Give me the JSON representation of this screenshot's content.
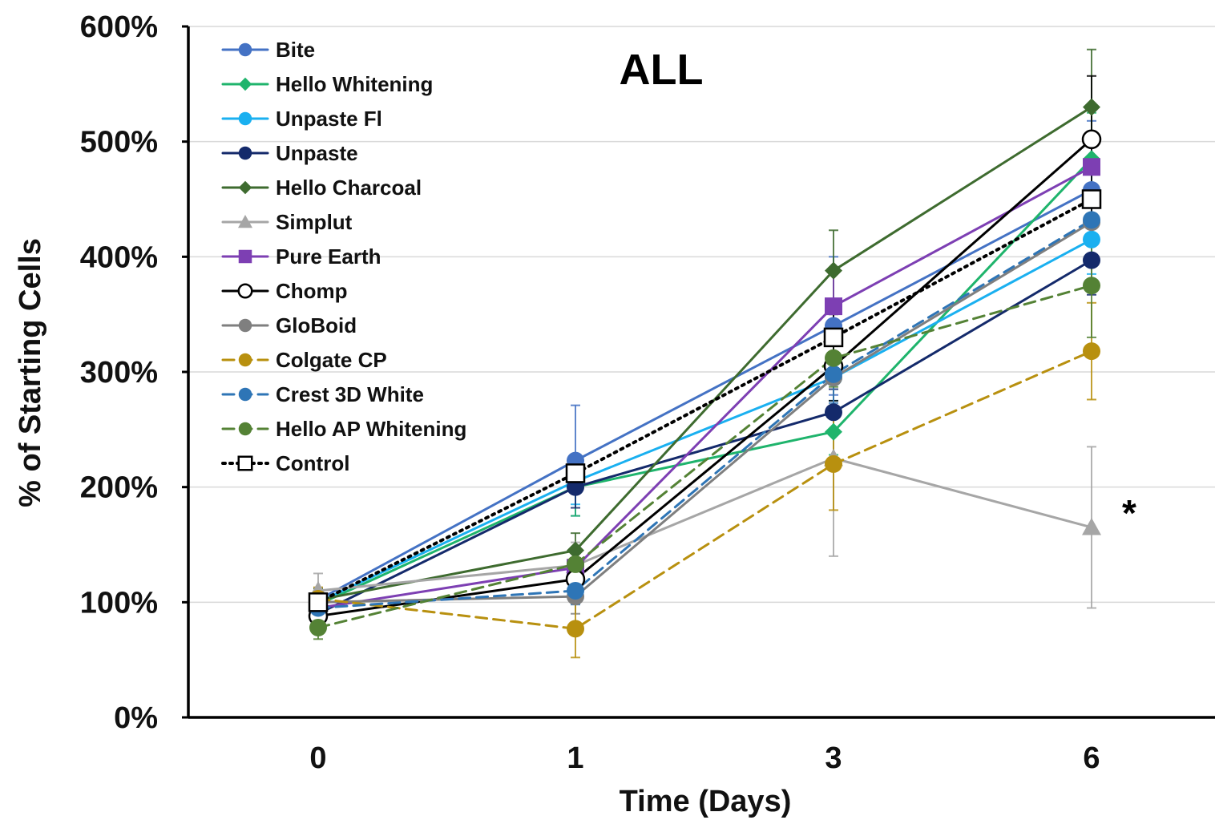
{
  "chart_data": {
    "type": "line",
    "title": "ALL",
    "xlabel": "Time (Days)",
    "ylabel": "% of Starting Cells",
    "categories": [
      "0",
      "1",
      "3",
      "6"
    ],
    "ylim": [
      0,
      600
    ],
    "y_ticks": [
      "0%",
      "100%",
      "200%",
      "300%",
      "400%",
      "500%",
      "600%"
    ],
    "grid": "horizontal",
    "legend_position": "top-left",
    "annotations": [
      {
        "text": "*",
        "near_series": "Simplut",
        "x": "6"
      }
    ],
    "series": [
      {
        "name": "Bite",
        "color": "#4472c4",
        "marker": "circle",
        "dash": "solid",
        "values": [
          102,
          223,
          340,
          458
        ],
        "errors": [
          10,
          48,
          60,
          60
        ]
      },
      {
        "name": "Hello Whitening",
        "color": "#1fb46c",
        "marker": "diamond",
        "dash": "solid",
        "values": [
          98,
          200,
          248,
          485
        ],
        "errors": [
          10,
          25,
          20,
          40
        ]
      },
      {
        "name": "Unpaste Fl",
        "color": "#1ab0f0",
        "marker": "circle",
        "dash": "solid",
        "values": [
          100,
          205,
          295,
          415
        ],
        "errors": [
          10,
          20,
          20,
          30
        ]
      },
      {
        "name": "Unpaste",
        "color": "#142a6b",
        "marker": "circle",
        "dash": "solid",
        "values": [
          90,
          200,
          265,
          397
        ],
        "errors": [
          10,
          18,
          20,
          30
        ]
      },
      {
        "name": "Hello Charcoal",
        "color": "#3e6b2f",
        "marker": "diamond",
        "dash": "solid",
        "values": [
          102,
          145,
          388,
          530
        ],
        "errors": [
          10,
          15,
          35,
          50
        ]
      },
      {
        "name": "Simplut",
        "color": "#a6a6a6",
        "marker": "triangle",
        "dash": "solid",
        "values": [
          110,
          132,
          225,
          165
        ],
        "errors": [
          15,
          20,
          85,
          70
        ]
      },
      {
        "name": "Pure Earth",
        "color": "#7d3fb3",
        "marker": "square",
        "dash": "solid",
        "values": [
          95,
          130,
          357,
          478
        ],
        "errors": [
          10,
          15,
          30,
          30
        ]
      },
      {
        "name": "Chomp",
        "color": "#000000",
        "marker": "circle-open",
        "dash": "solid",
        "values": [
          88,
          120,
          305,
          502
        ],
        "errors": [
          8,
          15,
          30,
          55
        ]
      },
      {
        "name": "GloBoid",
        "color": "#7f7f7f",
        "marker": "circle",
        "dash": "solid",
        "values": [
          100,
          105,
          295,
          430
        ],
        "errors": [
          10,
          15,
          30,
          50
        ]
      },
      {
        "name": "Colgate CP",
        "color": "#b8900f",
        "marker": "circle",
        "dash": "dashed",
        "values": [
          103,
          77,
          220,
          318
        ],
        "errors": [
          10,
          25,
          40,
          42
        ]
      },
      {
        "name": "Crest 3D White",
        "color": "#2e75b6",
        "marker": "circle",
        "dash": "dashed",
        "values": [
          95,
          110,
          298,
          432
        ],
        "errors": [
          10,
          12,
          25,
          40
        ]
      },
      {
        "name": "Hello AP Whitening",
        "color": "#548235",
        "marker": "circle",
        "dash": "dashed",
        "values": [
          78,
          133,
          312,
          375
        ],
        "errors": [
          10,
          15,
          25,
          45
        ]
      },
      {
        "name": "Control",
        "color": "#000000",
        "marker": "square-open",
        "dash": "dotted",
        "values": [
          100,
          212,
          330,
          450
        ],
        "errors": [
          10,
          15,
          20,
          25
        ]
      }
    ]
  }
}
